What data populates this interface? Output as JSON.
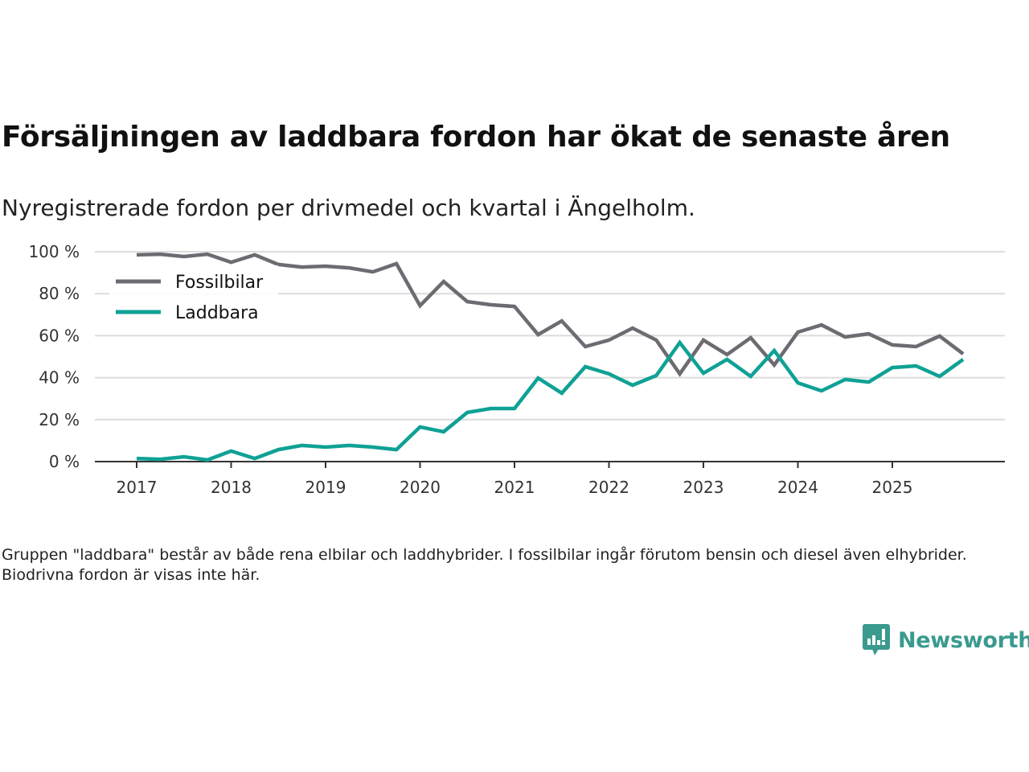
{
  "header": {
    "title": "Försäljningen av laddbara fordon har ökat de senaste åren",
    "subtitle": "Nyregistrerade fordon per drivmedel och kvartal i Ängelholm."
  },
  "footnote": "Gruppen \"laddbara\" består av både rena elbilar och laddhybrider. I fossilbilar ingår förutom bensin och diesel även elhybrider. Biodrivna fordon är visas inte här.",
  "brand": {
    "name": "Newsworthy",
    "color": "#3a9a8e",
    "icon": "bar-chart-speech-bubble-icon"
  },
  "chart_data": {
    "type": "line",
    "title": "Försäljningen av laddbara fordon har ökat de senaste åren",
    "subtitle": "Nyregistrerade fordon per drivmedel och kvartal i Ängelholm.",
    "xlabel": "",
    "ylabel": "",
    "x": [
      "2017Q1",
      "2017Q2",
      "2017Q3",
      "2017Q4",
      "2018Q1",
      "2018Q2",
      "2018Q3",
      "2018Q4",
      "2019Q1",
      "2019Q2",
      "2019Q3",
      "2019Q4",
      "2020Q1",
      "2020Q2",
      "2020Q3",
      "2020Q4",
      "2021Q1",
      "2021Q2",
      "2021Q3",
      "2021Q4",
      "2022Q1",
      "2022Q2",
      "2022Q3",
      "2022Q4",
      "2023Q1",
      "2023Q2",
      "2023Q3",
      "2023Q4",
      "2024Q1",
      "2024Q2",
      "2024Q3",
      "2024Q4",
      "2025Q1",
      "2025Q2",
      "2025Q3",
      "2025Q4"
    ],
    "x_tick_labels": [
      "2017",
      "2018",
      "2019",
      "2020",
      "2021",
      "2022",
      "2023",
      "2024",
      "2025"
    ],
    "y_tick_labels": [
      "0 %",
      "20 %",
      "40 %",
      "60 %",
      "80 %",
      "100 %"
    ],
    "y_ticks": [
      0,
      20,
      40,
      60,
      80,
      100
    ],
    "ylim": [
      0,
      100
    ],
    "grid": true,
    "legend_position": "top-left",
    "series": [
      {
        "name": "Fossilbilar",
        "color": "#6d6b72",
        "values": [
          98.5,
          98.8,
          97.7,
          98.8,
          95.0,
          98.5,
          93.9,
          92.7,
          93.1,
          92.3,
          90.4,
          94.3,
          74.3,
          85.8,
          76.2,
          74.7,
          73.9,
          60.5,
          67.0,
          54.8,
          57.9,
          63.6,
          57.9,
          41.8,
          57.9,
          51.0,
          59.0,
          46.0,
          61.7,
          65.1,
          59.4,
          60.9,
          55.6,
          54.8,
          59.8,
          51.3
        ]
      },
      {
        "name": "Laddbara",
        "color": "#0fa195",
        "values": [
          1.5,
          1.1,
          2.3,
          0.8,
          5.0,
          1.5,
          5.7,
          7.7,
          6.9,
          7.7,
          6.9,
          5.7,
          16.5,
          14.2,
          23.4,
          25.3,
          25.3,
          39.8,
          32.6,
          45.2,
          41.8,
          36.4,
          41.0,
          56.7,
          42.1,
          48.7,
          40.6,
          52.9,
          37.5,
          33.7,
          39.1,
          37.9,
          44.8,
          45.6,
          40.6,
          48.7
        ]
      }
    ]
  }
}
